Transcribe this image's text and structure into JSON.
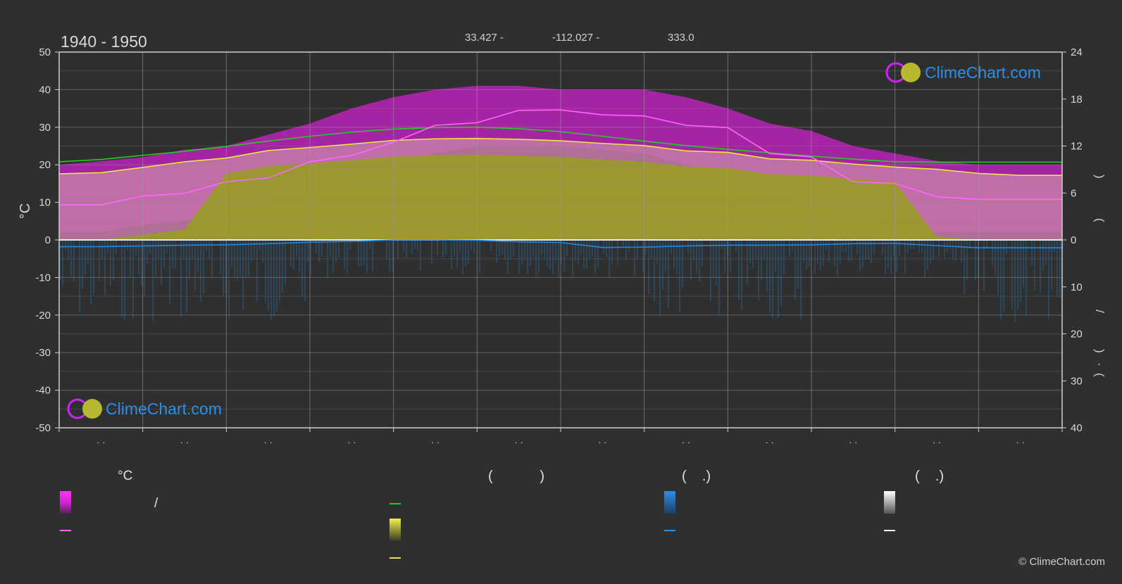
{
  "header": {
    "period": "1940 - 1950",
    "lat": "33.427 -",
    "lon": "-112.027 -",
    "elevation": "333.0"
  },
  "logo": {
    "text": "ClimeChart.com"
  },
  "copyright": "© ClimeChart.com",
  "left_axis": {
    "label": "°C",
    "ticks": [
      "50",
      "40",
      "30",
      "20",
      "10",
      "0",
      "-10",
      "-20",
      "-30",
      "-40",
      "-50"
    ]
  },
  "right_axis": {
    "upper_ticks": [
      "24",
      "18",
      "12",
      "6",
      "0"
    ],
    "lower_ticks": [
      "10",
      "20",
      "30",
      "40"
    ],
    "fragments": [
      ")",
      "(",
      "/",
      ")",
      "·",
      "("
    ]
  },
  "month_labels": [
    "· ·",
    "· ·",
    "· ·",
    "· ·",
    "· ·",
    "· ·",
    "· ·",
    "· ·",
    "· ·",
    "· ·",
    "· ·",
    "· ·"
  ],
  "legend": {
    "headers": [
      "°C",
      "(            )",
      "(    .)",
      "(    .)"
    ],
    "slash": "/"
  },
  "colors": {
    "background": "#2f2f2f",
    "daylight": "#22cc22",
    "sunshine": "#e8e840",
    "max_temp": "#ff66ff",
    "precip": "#2288dd",
    "temp_band": "#cc22cc",
    "sun_fill": "#9a9a2a",
    "brand_blue": "#2b8fe8"
  },
  "chart_data": {
    "type": "line",
    "x": [
      0,
      0.5,
      1,
      1.5,
      2,
      2.5,
      3,
      3.5,
      4,
      4.5,
      5,
      5.5,
      6,
      6.5,
      7,
      7.5,
      8,
      8.5,
      9,
      9.5,
      10,
      10.5,
      11,
      11.5,
      12
    ],
    "ylim_left": [
      -50,
      50
    ],
    "ylim_right_upper": [
      0,
      24
    ],
    "ylim_right_lower": [
      0,
      40
    ],
    "grid": true,
    "series": [
      {
        "key": "daylight",
        "values": [
          20.8,
          21.4,
          22.5,
          23.6,
          24.9,
          26.3,
          27.6,
          28.7,
          29.5,
          29.9,
          30.0,
          29.6,
          28.8,
          27.6,
          26.3,
          25.1,
          24.1,
          23.2,
          22.3,
          21.5,
          20.8,
          20.7,
          20.7,
          20.7,
          20.7
        ]
      },
      {
        "key": "sunshine",
        "values": [
          17.6,
          17.9,
          19.3,
          20.8,
          21.8,
          23.8,
          24.6,
          25.5,
          26.5,
          26.9,
          27.0,
          26.8,
          26.4,
          25.7,
          25.1,
          23.7,
          23.3,
          21.6,
          21.2,
          20.2,
          19.4,
          18.8,
          17.7,
          17.2,
          17.2
        ]
      },
      {
        "key": "max_temp",
        "values": [
          9.3,
          9.3,
          11.7,
          12.4,
          15.5,
          16.5,
          20.8,
          22.5,
          26.0,
          30.5,
          31.2,
          34.5,
          34.6,
          33.3,
          33.0,
          30.5,
          29.9,
          23.0,
          22.1,
          15.5,
          15.0,
          11.5,
          10.8,
          10.8,
          10.8
        ]
      },
      {
        "key": "precip",
        "values": [
          -1.8,
          -1.8,
          -1.6,
          -1.4,
          -1.3,
          -1.0,
          -0.6,
          -0.4,
          0.0,
          0.0,
          -0.1,
          -0.5,
          -0.7,
          -2.0,
          -1.9,
          -1.6,
          -1.4,
          -1.4,
          -1.3,
          -1.0,
          -0.9,
          -1.5,
          -2.1,
          -2.1,
          -2.1
        ]
      },
      {
        "key": "temp_band_top",
        "values": [
          20,
          21,
          22,
          24,
          25,
          28,
          31,
          35,
          38,
          40,
          41,
          41,
          40,
          40,
          40,
          38,
          35,
          31,
          29,
          25,
          23,
          21,
          20,
          20,
          20
        ]
      },
      {
        "key": "temp_band_bottom",
        "values": [
          2,
          2,
          4,
          5,
          7,
          10,
          13,
          16,
          20,
          23,
          25,
          25,
          25,
          24,
          23,
          20,
          15,
          11,
          9,
          6,
          4,
          2,
          2,
          2,
          2
        ]
      }
    ]
  }
}
